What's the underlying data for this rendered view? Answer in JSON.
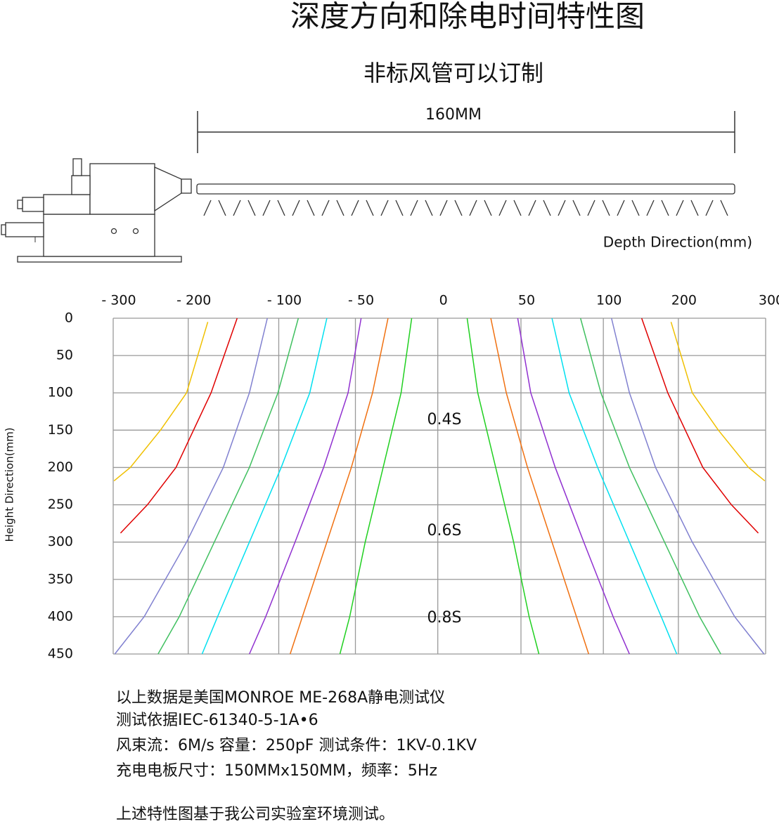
{
  "chart_data": {
    "type": "line",
    "title": "深度方向和除电时间特性图",
    "subtitle": "非标风管可以订制",
    "dimension_label": "160MM",
    "x_label": "Depth Direction(mm)",
    "y_label": "Height Direction(mm)",
    "xlim": [
      0,
      8
    ],
    "xticks": [
      {
        "value": 0,
        "label": "- 300"
      },
      {
        "value": 0.92,
        "label": "- 200"
      },
      {
        "value": 2.03,
        "label": "- 100"
      },
      {
        "value": 2.97,
        "label": "- 50"
      },
      {
        "value": 3.98,
        "label": "0"
      },
      {
        "value": 5,
        "label": "50"
      },
      {
        "value": 6.01,
        "label": "100"
      },
      {
        "value": 6.93,
        "label": "200"
      },
      {
        "value": 8,
        "label": "300"
      }
    ],
    "ylim": [
      0,
      450
    ],
    "y_inverted": true,
    "yticks": [
      0,
      50,
      100,
      150,
      200,
      250,
      300,
      350,
      400,
      450
    ],
    "grid": true,
    "series": [
      {
        "color": "#f0c000",
        "x": [
          1.16,
          0.9,
          0.58,
          0.21,
          0.01
        ],
        "values": [
          5,
          100,
          150,
          200,
          218
        ]
      },
      {
        "color": "#f0c000",
        "x": [
          6.84,
          7.1,
          7.42,
          7.79,
          7.99
        ],
        "values": [
          5,
          100,
          150,
          200,
          218
        ]
      },
      {
        "color": "#e00000",
        "x": [
          1.52,
          1.2,
          0.77,
          0.42,
          0.09
        ],
        "values": [
          0,
          100,
          200,
          250,
          288
        ]
      },
      {
        "color": "#e00000",
        "x": [
          6.48,
          6.8,
          7.23,
          7.58,
          7.91
        ],
        "values": [
          0,
          100,
          200,
          250,
          288
        ]
      },
      {
        "color": "#8080d0",
        "x": [
          1.89,
          1.67,
          1.35,
          0.9,
          0.38,
          0.02
        ],
        "values": [
          0,
          100,
          200,
          300,
          400,
          450
        ]
      },
      {
        "color": "#8080d0",
        "x": [
          6.11,
          6.33,
          6.65,
          7.1,
          7.62,
          7.98
        ],
        "values": [
          0,
          100,
          200,
          300,
          400,
          450
        ]
      },
      {
        "color": "#40c060",
        "x": [
          2.27,
          2.02,
          1.67,
          1.24,
          0.81,
          0.55
        ],
        "values": [
          0,
          100,
          200,
          300,
          400,
          450
        ]
      },
      {
        "color": "#40c060",
        "x": [
          5.73,
          5.98,
          6.33,
          6.76,
          7.19,
          7.45
        ],
        "values": [
          0,
          100,
          200,
          300,
          400,
          450
        ]
      },
      {
        "color": "#00e0f0",
        "x": [
          2.62,
          2.41,
          2.06,
          1.67,
          1.28,
          1.09
        ],
        "values": [
          0,
          100,
          200,
          300,
          400,
          450
        ]
      },
      {
        "color": "#00e0f0",
        "x": [
          5.38,
          5.59,
          5.94,
          6.33,
          6.72,
          6.91
        ],
        "values": [
          0,
          100,
          200,
          300,
          400,
          450
        ]
      },
      {
        "color": "#9030d0",
        "x": [
          3.04,
          2.88,
          2.58,
          2.23,
          1.87,
          1.67
        ],
        "values": [
          0,
          100,
          200,
          300,
          400,
          450
        ]
      },
      {
        "color": "#9030d0",
        "x": [
          4.96,
          5.12,
          5.42,
          5.77,
          6.13,
          6.33
        ],
        "values": [
          0,
          100,
          200,
          300,
          400,
          450
        ]
      },
      {
        "color": "#f07010",
        "x": [
          3.37,
          3.18,
          2.92,
          2.62,
          2.32,
          2.17
        ],
        "values": [
          0,
          100,
          200,
          300,
          400,
          450
        ]
      },
      {
        "color": "#f07010",
        "x": [
          4.63,
          4.82,
          5.08,
          5.38,
          5.68,
          5.83
        ],
        "values": [
          0,
          100,
          200,
          300,
          400,
          450
        ]
      },
      {
        "color": "#20d020",
        "x": [
          3.66,
          3.53,
          3.31,
          3.09,
          2.9,
          2.78
        ],
        "values": [
          0,
          100,
          200,
          300,
          400,
          450
        ]
      },
      {
        "color": "#20d020",
        "x": [
          4.34,
          4.47,
          4.69,
          4.91,
          5.1,
          5.22
        ],
        "values": [
          0,
          100,
          200,
          300,
          400,
          450
        ]
      }
    ],
    "annotations": [
      "0.4S",
      "0.6S",
      "0.8S"
    ],
    "notes": [
      "以上数据是美国MONROE ME-268A静电测试仪",
      "测试依据IEC-61340-5-1A•6",
      "风束流：6M/s  容量：250pF  测试条件：1KV-0.1KV",
      "充电电板尺寸：150MMx150MM，频率：5Hz",
      "上述特性图基于我公司实验室环境测试。"
    ]
  }
}
